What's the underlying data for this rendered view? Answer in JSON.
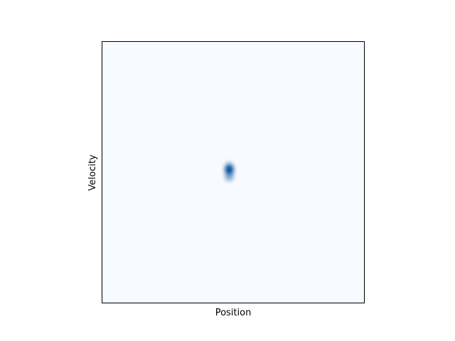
{
  "chart_data": {
    "type": "heatmap",
    "title": "",
    "xlabel": "Position",
    "ylabel": "Velocity",
    "xlim": [
      -1,
      1
    ],
    "ylim": [
      -1,
      1
    ],
    "grid": false,
    "colormap": "Blues",
    "background_color": "#f7fbff",
    "peak_color": "#08519c",
    "peaks": [
      {
        "x": -0.03,
        "y": 0.02,
        "sigma_x": 0.022,
        "sigma_y": 0.028,
        "amplitude": 1.0
      },
      {
        "x": -0.03,
        "y": -0.04,
        "sigma_x": 0.022,
        "sigma_y": 0.02,
        "amplitude": 0.35
      }
    ]
  }
}
